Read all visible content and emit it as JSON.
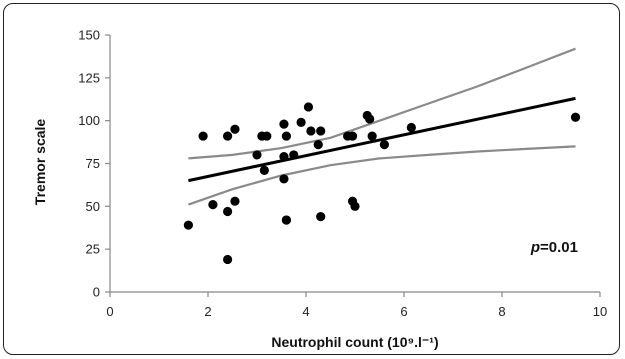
{
  "chart_data": {
    "type": "scatter",
    "xlabel": "Neutrophil count (10⁹.l⁻¹)",
    "ylabel": "Tremor scale",
    "xlim": [
      0,
      10
    ],
    "ylim": [
      0,
      150
    ],
    "x_ticks": [
      "0",
      "2",
      "4",
      "6",
      "8",
      "10"
    ],
    "y_ticks": [
      "0",
      "25",
      "50",
      "75",
      "100",
      "125",
      "150"
    ],
    "grid": false,
    "annotation": {
      "italic": "p",
      "rest": "=0.01"
    },
    "points": [
      {
        "x": 1.6,
        "y": 39
      },
      {
        "x": 1.9,
        "y": 91
      },
      {
        "x": 2.1,
        "y": 51
      },
      {
        "x": 2.4,
        "y": 19
      },
      {
        "x": 2.4,
        "y": 47
      },
      {
        "x": 2.4,
        "y": 91
      },
      {
        "x": 2.55,
        "y": 95
      },
      {
        "x": 2.55,
        "y": 53
      },
      {
        "x": 3.0,
        "y": 80
      },
      {
        "x": 3.1,
        "y": 91
      },
      {
        "x": 3.15,
        "y": 71
      },
      {
        "x": 3.2,
        "y": 91
      },
      {
        "x": 3.55,
        "y": 98
      },
      {
        "x": 3.55,
        "y": 79
      },
      {
        "x": 3.55,
        "y": 66
      },
      {
        "x": 3.6,
        "y": 91
      },
      {
        "x": 3.6,
        "y": 42
      },
      {
        "x": 3.6,
        "y": 42
      },
      {
        "x": 3.75,
        "y": 80
      },
      {
        "x": 3.9,
        "y": 99
      },
      {
        "x": 4.05,
        "y": 108
      },
      {
        "x": 4.1,
        "y": 94
      },
      {
        "x": 4.25,
        "y": 86
      },
      {
        "x": 4.3,
        "y": 94
      },
      {
        "x": 4.3,
        "y": 44
      },
      {
        "x": 4.85,
        "y": 91
      },
      {
        "x": 4.95,
        "y": 91
      },
      {
        "x": 4.95,
        "y": 53
      },
      {
        "x": 5.0,
        "y": 50
      },
      {
        "x": 5.25,
        "y": 103
      },
      {
        "x": 5.3,
        "y": 101
      },
      {
        "x": 5.35,
        "y": 91
      },
      {
        "x": 5.6,
        "y": 86
      },
      {
        "x": 6.15,
        "y": 96
      },
      {
        "x": 9.5,
        "y": 102
      }
    ],
    "fit_line": [
      {
        "x": 1.6,
        "y": 65
      },
      {
        "x": 9.5,
        "y": 113
      }
    ],
    "ci_upper": [
      {
        "x": 1.6,
        "y": 78
      },
      {
        "x": 2.5,
        "y": 80
      },
      {
        "x": 3.5,
        "y": 84
      },
      {
        "x": 4.5,
        "y": 90
      },
      {
        "x": 5.5,
        "y": 100
      },
      {
        "x": 6.5,
        "y": 110
      },
      {
        "x": 7.5,
        "y": 120
      },
      {
        "x": 8.5,
        "y": 131
      },
      {
        "x": 9.5,
        "y": 142
      }
    ],
    "ci_lower": [
      {
        "x": 1.6,
        "y": 51
      },
      {
        "x": 2.5,
        "y": 60
      },
      {
        "x": 3.5,
        "y": 68
      },
      {
        "x": 4.5,
        "y": 74
      },
      {
        "x": 5.5,
        "y": 78
      },
      {
        "x": 6.5,
        "y": 80
      },
      {
        "x": 7.5,
        "y": 82
      },
      {
        "x": 8.5,
        "y": 83.5
      },
      {
        "x": 9.5,
        "y": 85
      }
    ],
    "colors": {
      "points": "#000000",
      "fit": "#000000",
      "ci": "#8a8a8a",
      "axis": "#888888"
    }
  }
}
